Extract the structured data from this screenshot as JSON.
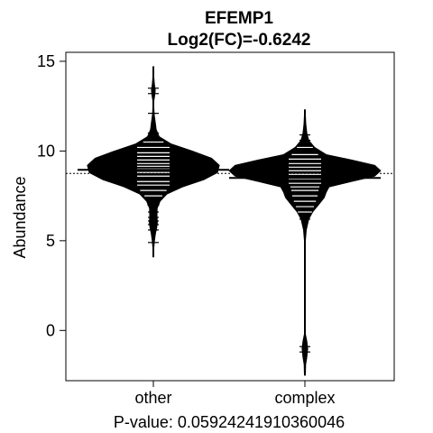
{
  "chart_data": {
    "type": "beanplot",
    "title": "EFEMP1",
    "subtitle": "Log2(FC)=-0.6242",
    "xlabel": "P-value: 0.0592424191036004​6",
    "ylabel": "Abundance",
    "ylim": [
      -2.8,
      15.5
    ],
    "yticks": [
      0,
      5,
      10,
      15
    ],
    "categories": [
      "other",
      "complex"
    ],
    "overall_mean": 8.75,
    "series": [
      {
        "name": "other",
        "mean": 8.95,
        "range": [
          4.1,
          14.7
        ],
        "density": [
          [
            4.1,
            0.2
          ],
          [
            4.6,
            0.5
          ],
          [
            5.0,
            1.2
          ],
          [
            5.4,
            2.2
          ],
          [
            5.7,
            3.4
          ],
          [
            6.0,
            4.2
          ],
          [
            6.4,
            3.8
          ],
          [
            6.8,
            4.0
          ],
          [
            7.2,
            7.0
          ],
          [
            7.6,
            14.0
          ],
          [
            8.0,
            30.0
          ],
          [
            8.4,
            52.0
          ],
          [
            8.8,
            66.0
          ],
          [
            9.2,
            68.0
          ],
          [
            9.6,
            60.0
          ],
          [
            10.0,
            40.0
          ],
          [
            10.4,
            18.0
          ],
          [
            10.8,
            6.0
          ],
          [
            11.2,
            3.0
          ],
          [
            11.6,
            2.0
          ],
          [
            12.0,
            1.0
          ],
          [
            12.4,
            0.6
          ],
          [
            12.8,
            0.4
          ],
          [
            13.1,
            1.5
          ],
          [
            13.4,
            2.0
          ],
          [
            13.7,
            1.2
          ],
          [
            14.1,
            0.3
          ],
          [
            14.7,
            0.1
          ]
        ],
        "marks": [
          4.9,
          5.6,
          5.9,
          6.1,
          6.3,
          6.6,
          7.0,
          7.5,
          7.8,
          8.1,
          8.3,
          8.6,
          8.8,
          9.0,
          9.15,
          9.3,
          9.5,
          9.7,
          9.9,
          10.2,
          10.5,
          10.8,
          11.0,
          12.1,
          13.2,
          13.5
        ]
      },
      {
        "name": "complex",
        "mean": 8.5,
        "range": [
          -2.5,
          12.3
        ],
        "density": [
          [
            -2.5,
            0.1
          ],
          [
            -1.9,
            0.8
          ],
          [
            -1.5,
            2.0
          ],
          [
            -1.0,
            3.0
          ],
          [
            -0.6,
            2.0
          ],
          [
            -0.2,
            0.6
          ],
          [
            0.3,
            0.2
          ],
          [
            1.0,
            0.1
          ],
          [
            2.0,
            0.1
          ],
          [
            3.0,
            0.1
          ],
          [
            4.0,
            0.2
          ],
          [
            5.0,
            0.6
          ],
          [
            5.6,
            1.5
          ],
          [
            6.2,
            4.0
          ],
          [
            6.6,
            8.0
          ],
          [
            7.0,
            14.0
          ],
          [
            7.4,
            20.0
          ],
          [
            7.7,
            22.0
          ],
          [
            8.0,
            25.0
          ],
          [
            8.3,
            48.0
          ],
          [
            8.6,
            72.0
          ],
          [
            8.9,
            78.0
          ],
          [
            9.2,
            72.0
          ],
          [
            9.5,
            48.0
          ],
          [
            9.8,
            22.0
          ],
          [
            10.2,
            10.0
          ],
          [
            10.6,
            4.0
          ],
          [
            11.0,
            2.0
          ],
          [
            11.5,
            1.0
          ],
          [
            12.0,
            0.5
          ],
          [
            12.3,
            0.1
          ]
        ],
        "marks": [
          -1.2,
          -0.9,
          6.2,
          6.6,
          6.9,
          7.2,
          7.5,
          7.8,
          8.0,
          8.2,
          8.45,
          8.7,
          8.9,
          9.1,
          9.3,
          9.55,
          9.8,
          10.2,
          10.6,
          10.9
        ]
      }
    ],
    "grid": false,
    "legend": "none",
    "colors": {
      "bean": "#000000",
      "mark": "#ffffff",
      "background": "#ffffff"
    }
  }
}
